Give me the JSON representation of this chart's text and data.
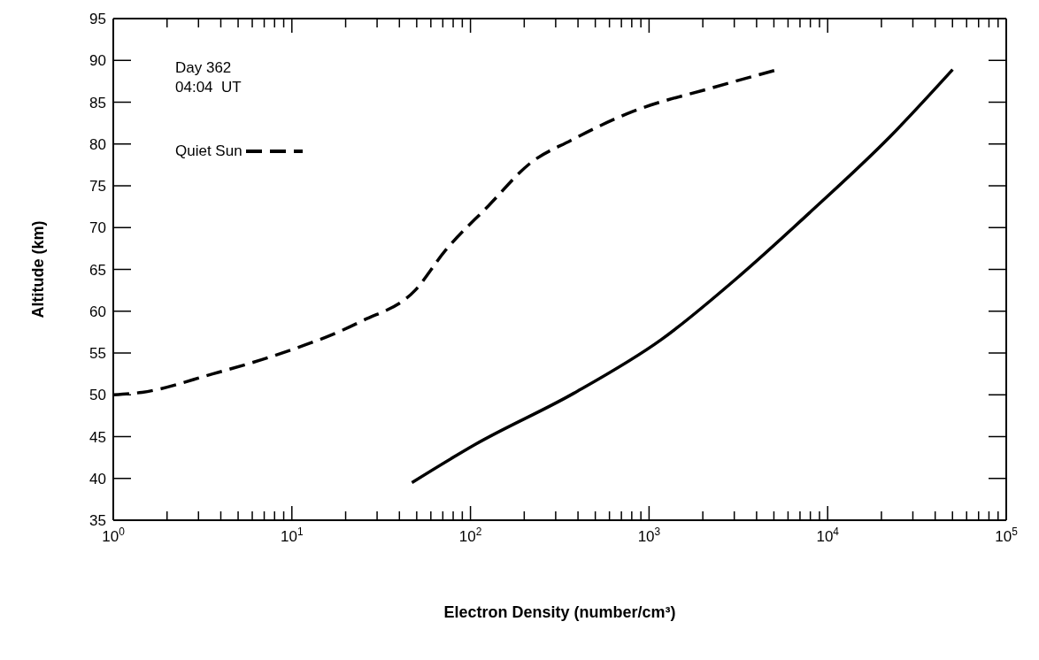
{
  "chart_data": {
    "type": "line",
    "xlabel": "Electron Density (number/cm³)",
    "ylabel": "Altitude (km)",
    "annotations": [
      "Day 362",
      "04:04  UT"
    ],
    "log": "x",
    "legend": "top left",
    "marker": "none",
    "xlim": [
      1,
      100000
    ],
    "ylim": [
      35,
      95
    ],
    "xticks": [
      {
        "value": 1,
        "label": "10$^{0}$"
      },
      {
        "value": 2,
        "label": null
      },
      {
        "value": 3,
        "label": null
      },
      {
        "value": 4,
        "label": null
      },
      {
        "value": 5,
        "label": null
      },
      {
        "value": 6,
        "label": null
      },
      {
        "value": 7,
        "label": null
      },
      {
        "value": 8,
        "label": null
      },
      {
        "value": 9,
        "label": null
      },
      {
        "value": 10,
        "label": "10$^{1}$"
      },
      {
        "value": 20,
        "label": null
      },
      {
        "value": 30,
        "label": null
      },
      {
        "value": 40,
        "label": null
      },
      {
        "value": 50,
        "label": null
      },
      {
        "value": 60,
        "label": null
      },
      {
        "value": 70,
        "label": null
      },
      {
        "value": 80,
        "label": null
      },
      {
        "value": 90,
        "label": null
      },
      {
        "value": 100,
        "label": "10$^{2}$"
      },
      {
        "value": 200,
        "label": null
      },
      {
        "value": 300,
        "label": null
      },
      {
        "value": 400,
        "label": null
      },
      {
        "value": 500,
        "label": null
      },
      {
        "value": 600,
        "label": null
      },
      {
        "value": 700,
        "label": null
      },
      {
        "value": 800,
        "label": null
      },
      {
        "value": 900,
        "label": null
      },
      {
        "value": 1000,
        "label": "10$^{3}$"
      },
      {
        "value": 2000,
        "label": null
      },
      {
        "value": 3000,
        "label": null
      },
      {
        "value": 4000,
        "label": null
      },
      {
        "value": 5000,
        "label": null
      },
      {
        "value": 6000,
        "label": null
      },
      {
        "value": 7000,
        "label": null
      },
      {
        "value": 8000,
        "label": null
      },
      {
        "value": 9000,
        "label": null
      },
      {
        "value": 10000,
        "label": "10$^{4}$"
      },
      {
        "value": 20000,
        "label": null
      },
      {
        "value": 30000,
        "label": null
      },
      {
        "value": 40000,
        "label": null
      },
      {
        "value": 50000,
        "label": null
      },
      {
        "value": 60000,
        "label": null
      },
      {
        "value": 70000,
        "label": null
      },
      {
        "value": 80000,
        "label": null
      },
      {
        "value": 90000,
        "label": null
      },
      {
        "value": 100000,
        "label": "10$^{5}$"
      }
    ],
    "yticks": [
      35,
      40,
      45,
      50,
      55,
      60,
      65,
      70,
      75,
      80,
      85,
      90,
      95
    ],
    "series": [
      {
        "name": "Quiet Sun",
        "color": "#000000",
        "line_style": "dashed",
        "x": [
          1,
          1.45,
          3.6,
          8,
          24.5,
          49,
          72,
          126,
          219,
          363,
          813,
          2240,
          5250
        ],
        "values": [
          50,
          50.3,
          52.5,
          54.7,
          58.8,
          62.5,
          67.2,
          72.6,
          77.8,
          80.4,
          83.9,
          86.7,
          88.9
        ]
      },
      {
        "color": "#000000",
        "line_style": "solid",
        "x": [
          47,
          107,
          380,
          1170,
          3240,
          7940,
          22400,
          50100
        ],
        "values": [
          39.5,
          44.1,
          50.2,
          56.6,
          64.3,
          71.8,
          80.9,
          88.9
        ]
      }
    ]
  }
}
